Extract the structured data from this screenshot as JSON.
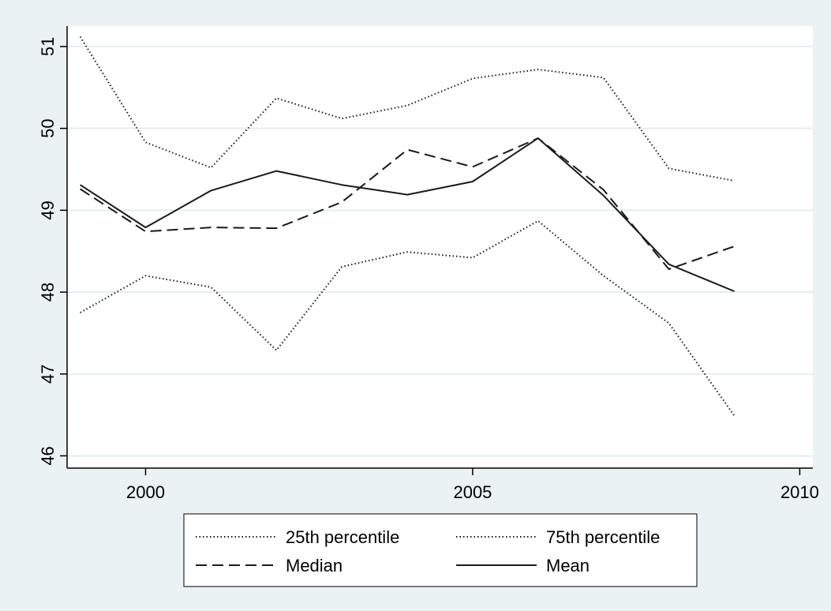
{
  "chart_data": {
    "type": "line",
    "title": "",
    "xlabel": "",
    "ylabel": "",
    "x": [
      1999,
      2000,
      2001,
      2002,
      2003,
      2004,
      2005,
      2006,
      2007,
      2008,
      2009
    ],
    "xlim": [
      1998.8,
      2010.2
    ],
    "ylim": [
      45.85,
      51.25
    ],
    "xticks": [
      2000,
      2005,
      2010
    ],
    "yticks": [
      46,
      47,
      48,
      49,
      50,
      51
    ],
    "grid": "horizontal",
    "legend_position": "bottom",
    "series": [
      {
        "name": "25th percentile",
        "style": "dotted",
        "values": [
          47.75,
          48.2,
          48.06,
          47.29,
          48.31,
          48.49,
          48.42,
          48.87,
          48.2,
          47.62,
          46.49
        ]
      },
      {
        "name": "75th percentile",
        "style": "dotted",
        "values": [
          51.12,
          49.83,
          49.52,
          50.37,
          50.12,
          50.28,
          50.61,
          50.72,
          50.62,
          49.51,
          49.36
        ]
      },
      {
        "name": "Median",
        "style": "dashed",
        "values": [
          49.26,
          48.74,
          48.79,
          48.78,
          49.1,
          49.74,
          49.53,
          49.88,
          49.25,
          48.28,
          48.56
        ]
      },
      {
        "name": "Mean",
        "style": "solid",
        "values": [
          49.31,
          48.79,
          49.24,
          49.48,
          49.31,
          49.19,
          49.35,
          49.88,
          49.18,
          48.34,
          48.01
        ]
      }
    ]
  },
  "colors": {
    "page_background": "#eaf2f3",
    "plot_background": "#ffffff",
    "gridline": "#e3eef0",
    "line": "#1a1a1a"
  }
}
